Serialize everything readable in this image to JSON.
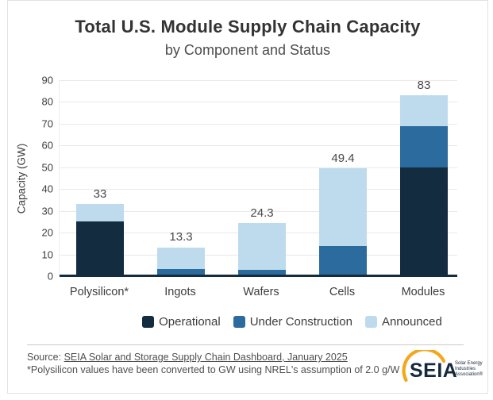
{
  "header": {
    "title": "Total U.S. Module Supply Chain Capacity",
    "subtitle": "by Component and Status"
  },
  "chart_data": {
    "type": "bar",
    "stacked": true,
    "categories": [
      "Polysilicon*",
      "Ingots",
      "Wafers",
      "Cells",
      "Modules"
    ],
    "series": [
      {
        "name": "Operational",
        "color": "#132c40",
        "values": [
          25,
          0,
          0,
          0,
          50
        ]
      },
      {
        "name": "Under Construction",
        "color": "#2c6b9e",
        "values": [
          0,
          3.3,
          2.9,
          13.8,
          19
        ]
      },
      {
        "name": "Announced",
        "color": "#bedbee",
        "values": [
          8,
          10,
          21.4,
          35.6,
          14
        ]
      }
    ],
    "totals_labels": [
      "33",
      "13.3",
      "24.3",
      "49.4",
      "83"
    ],
    "title": "Total U.S. Module Supply Chain Capacity",
    "subtitle": "by Component and Status",
    "xlabel": "",
    "ylabel": "Capacity (GW)",
    "yticks": [
      0,
      10,
      20,
      30,
      40,
      50,
      60,
      70,
      80,
      90
    ],
    "ylim": [
      0,
      90
    ],
    "grid": true,
    "legend_position": "bottom"
  },
  "footer": {
    "source_prefix": "Source: ",
    "source_link": "SEIA Solar and Storage Supply Chain Dashboard, January 2025",
    "footnote": "*Polysilicon values have been converted to GW using NREL's assumption of 2.0 g/W",
    "logo": {
      "text": "SEIA",
      "tagline_lines": [
        "Solar Energy",
        "Industries",
        "Association®"
      ]
    }
  },
  "colors": {
    "operational": "#132c40",
    "under_construction": "#2c6b9e",
    "announced": "#bedbee",
    "axis": "#132c40",
    "gridline": "#e9e9e9",
    "accent_gold": "#f2a81d"
  }
}
